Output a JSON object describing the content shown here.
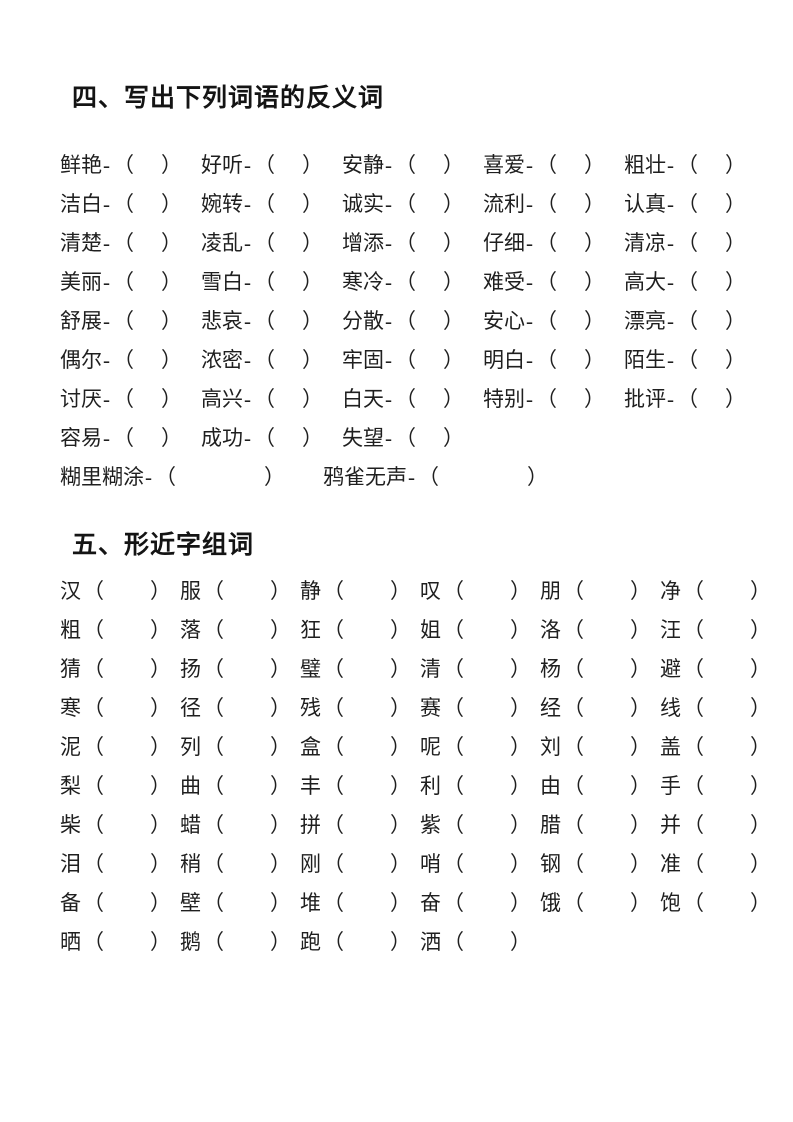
{
  "page": {
    "background": "#ffffff",
    "text_color": "#1f1f1f"
  },
  "section4": {
    "title": "四、写出下列词语的反义词",
    "hyphen": "-",
    "open_paren": "（",
    "close_paren": "）",
    "rows": [
      [
        "鲜艳",
        "好听",
        "安静",
        "喜爱",
        "粗壮"
      ],
      [
        "洁白",
        "婉转",
        "诚实",
        "流利",
        "认真"
      ],
      [
        "清楚",
        "凌乱",
        "增添",
        "仔细",
        "清凉"
      ],
      [
        "美丽",
        "雪白",
        "寒冷",
        "难受",
        "高大"
      ],
      [
        "舒展",
        "悲哀",
        "分散",
        "安心",
        "漂亮"
      ],
      [
        "偶尔",
        "浓密",
        "牢固",
        "明白",
        "陌生"
      ],
      [
        "讨厌",
        "高兴",
        "白天",
        "特别",
        "批评"
      ],
      [
        "容易",
        "成功",
        "失望"
      ],
      [
        "糊里糊涂",
        "鸦雀无声"
      ]
    ]
  },
  "section5": {
    "title": "五、形近字组词",
    "open_paren": "（",
    "close_paren": "）",
    "rows": [
      [
        "汉",
        "服",
        "静",
        "叹",
        "朋",
        "净"
      ],
      [
        "粗",
        "落",
        "狂",
        "姐",
        "洛",
        "汪"
      ],
      [
        "猜",
        "扬",
        "璧",
        "清",
        "杨",
        "避"
      ],
      [
        "寒",
        "径",
        "残",
        "赛",
        "经",
        "线"
      ],
      [
        "泥",
        "列",
        "盒",
        "呢",
        "刘",
        "盖"
      ],
      [
        "梨",
        "曲",
        "丰",
        "利",
        "由",
        "手"
      ],
      [
        "柴",
        "蜡",
        "拼",
        "紫",
        "腊",
        "并"
      ],
      [
        "泪",
        "稍",
        "刚",
        "哨",
        "钢",
        "准"
      ],
      [
        "备",
        "壁",
        "堆",
        "奋",
        "饿",
        "饱"
      ],
      [
        "晒",
        "鹅",
        "跑",
        "洒"
      ]
    ]
  }
}
